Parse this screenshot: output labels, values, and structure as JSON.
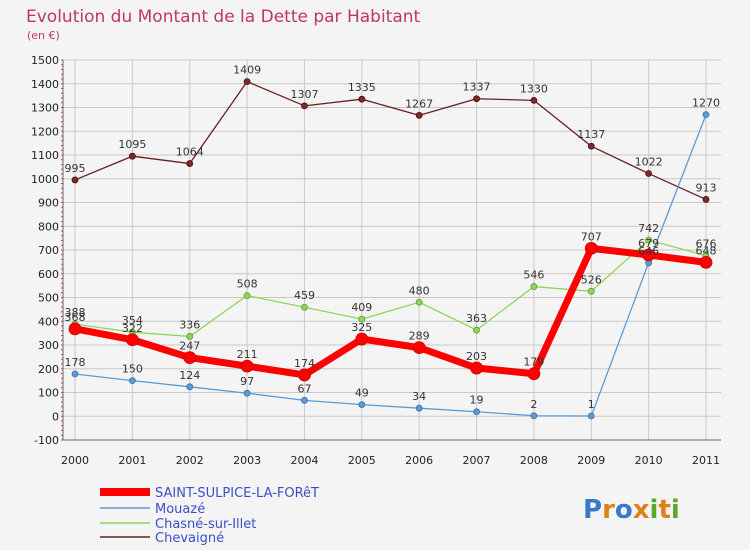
{
  "chart_data": {
    "type": "line",
    "title": "Evolution du Montant de la Dette par Habitant",
    "subtitle": "(en €)",
    "xlabel": "",
    "ylabel": "",
    "categories": [
      "2000",
      "2001",
      "2002",
      "2003",
      "2004",
      "2005",
      "2006",
      "2007",
      "2008",
      "2009",
      "2010",
      "2011"
    ],
    "ylim": [
      -100,
      1500
    ],
    "yticks": [
      -100,
      0,
      100,
      200,
      300,
      400,
      500,
      600,
      700,
      800,
      900,
      1000,
      1100,
      1200,
      1300,
      1400,
      1500
    ],
    "grid": true,
    "legend_position": "bottom-left",
    "series": [
      {
        "name": "SAINT-SULPICE-LA-FORêT",
        "color": "#ff0000",
        "values": [
          368,
          322,
          247,
          211,
          174,
          325,
          289,
          203,
          179,
          707,
          679,
          648
        ]
      },
      {
        "name": "Mouazé",
        "color": "#5b9bd5",
        "values": [
          178,
          150,
          124,
          97,
          67,
          49,
          34,
          19,
          2,
          1,
          646,
          1270
        ]
      },
      {
        "name": "Chasné-sur-Illet",
        "color": "#8fd65a",
        "values": [
          388,
          354,
          336,
          508,
          459,
          409,
          480,
          363,
          546,
          526,
          742,
          676
        ]
      },
      {
        "name": "Chevaigné",
        "color": "#6b1f1f",
        "values": [
          995,
          1095,
          1064,
          1409,
          1307,
          1335,
          1267,
          1337,
          1330,
          1137,
          1022,
          913
        ]
      }
    ]
  },
  "logo": {
    "text": "Proxiti"
  }
}
